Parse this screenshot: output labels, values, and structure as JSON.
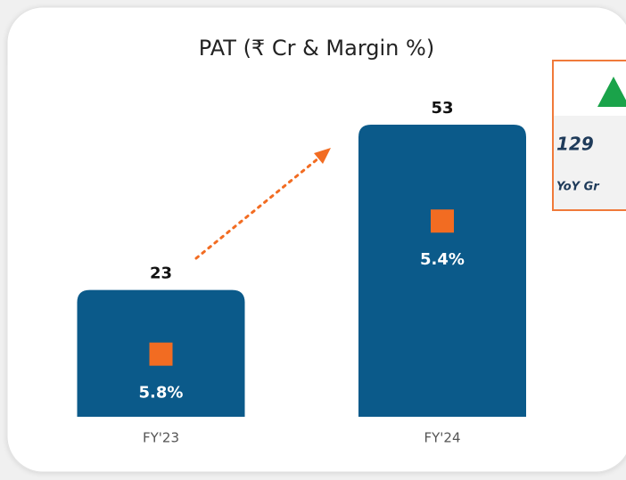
{
  "chart_data": {
    "type": "bar",
    "title": "PAT (₹ Cr & Margin %)",
    "categories": [
      "FY'23",
      "FY'24"
    ],
    "values": [
      23,
      53
    ],
    "color": "#0b5a8a",
    "margins": {
      "values": [
        5.8,
        5.4
      ],
      "value_labels": [
        "5.8%",
        "5.4%"
      ],
      "color": "#f26c22"
    },
    "callout": {
      "value": "129",
      "label": "YoY Gr"
    }
  }
}
